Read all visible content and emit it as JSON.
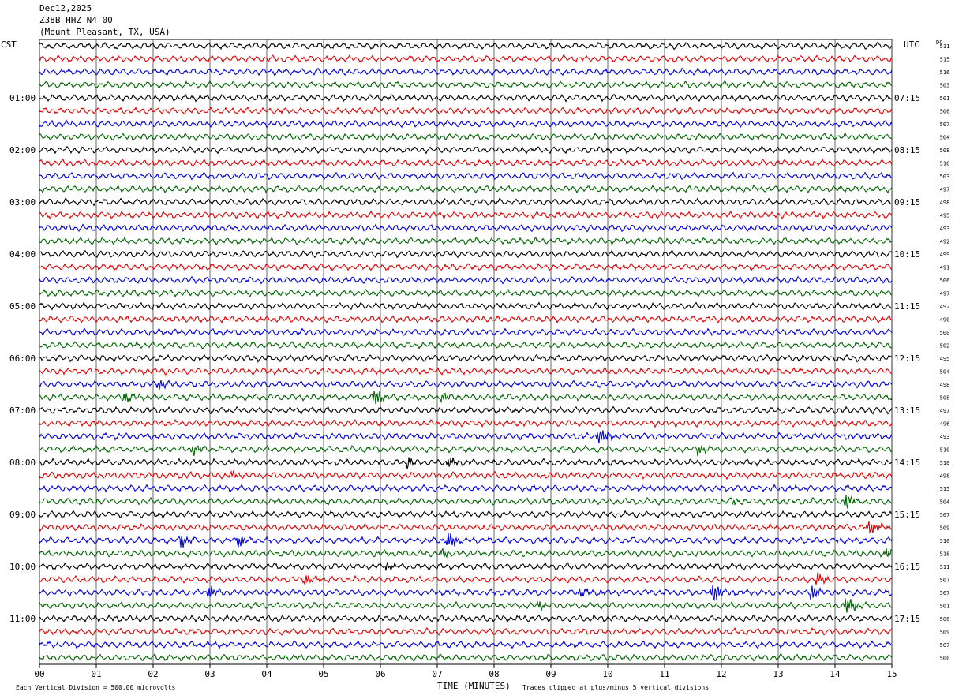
{
  "header": {
    "date": "Dec12,2025",
    "station": "Z38B HHZ N4 00",
    "location": "(Mount Pleasant, TX, USA)"
  },
  "left_zone": "CST",
  "right_zone": "UTC",
  "dc_label": "DC",
  "footer": {
    "scale_note": "Each Vertical Division =  500.00 microvolts",
    "xlabel": "TIME (MINUTES)",
    "clip_note": "Traces clipped at plus/minus 5 vertical divisions"
  },
  "chart_data": {
    "type": "line",
    "xlabel": "TIME (MINUTES)",
    "xlim": [
      0,
      15
    ],
    "x_ticks": [
      "00",
      "01",
      "02",
      "03",
      "04",
      "05",
      "06",
      "07",
      "08",
      "09",
      "10",
      "11",
      "12",
      "13",
      "14",
      "15"
    ],
    "left_hour_labels": [
      "01:00",
      "02:00",
      "03:00",
      "04:00",
      "05:00",
      "06:00",
      "07:00",
      "08:00",
      "09:00",
      "10:00",
      "11:00"
    ],
    "right_hour_labels": [
      "07:15",
      "08:15",
      "09:15",
      "10:15",
      "11:15",
      "12:15",
      "13:15",
      "14:15",
      "15:15",
      "16:15",
      "17:15"
    ],
    "trace_colors": [
      "#000000",
      "#e00000",
      "#0000e0",
      "#006400"
    ],
    "grid": true,
    "dc_offsets": [
      511,
      515,
      516,
      503,
      501,
      506,
      507,
      504,
      508,
      510,
      503,
      497,
      498,
      495,
      493,
      492,
      499,
      491,
      506,
      497,
      492,
      490,
      500,
      502,
      495,
      504,
      498,
      508,
      497,
      496,
      493,
      510,
      510,
      498,
      515,
      504,
      507,
      509,
      510,
      518,
      511,
      507,
      507,
      501,
      506,
      509,
      507,
      500
    ],
    "events": [
      {
        "trace": 26,
        "minute": 2.1,
        "amp": 1.2
      },
      {
        "trace": 27,
        "minute": 1.5,
        "amp": 1.4
      },
      {
        "trace": 27,
        "minute": 5.9,
        "amp": 2.8
      },
      {
        "trace": 27,
        "minute": 7.1,
        "amp": 1.0
      },
      {
        "trace": 30,
        "minute": 9.85,
        "amp": 2.6
      },
      {
        "trace": 31,
        "minute": 2.7,
        "amp": 1.4
      },
      {
        "trace": 31,
        "minute": 11.6,
        "amp": 1.4
      },
      {
        "trace": 32,
        "minute": 6.5,
        "amp": 1.6
      },
      {
        "trace": 32,
        "minute": 7.2,
        "amp": 1.2
      },
      {
        "trace": 33,
        "minute": 3.4,
        "amp": 1.0
      },
      {
        "trace": 35,
        "minute": 12.2,
        "amp": 1.2
      },
      {
        "trace": 35,
        "minute": 14.2,
        "amp": 3.0
      },
      {
        "trace": 37,
        "minute": 14.6,
        "amp": 2.0
      },
      {
        "trace": 38,
        "minute": 2.5,
        "amp": 2.0
      },
      {
        "trace": 38,
        "minute": 3.5,
        "amp": 1.8
      },
      {
        "trace": 38,
        "minute": 7.2,
        "amp": 2.4
      },
      {
        "trace": 39,
        "minute": 7.1,
        "amp": 1.2
      },
      {
        "trace": 39,
        "minute": 14.9,
        "amp": 1.4
      },
      {
        "trace": 40,
        "minute": 6.1,
        "amp": 1.4
      },
      {
        "trace": 41,
        "minute": 4.7,
        "amp": 1.4
      },
      {
        "trace": 41,
        "minute": 13.7,
        "amp": 1.8
      },
      {
        "trace": 42,
        "minute": 3.0,
        "amp": 1.6
      },
      {
        "trace": 42,
        "minute": 9.5,
        "amp": 1.4
      },
      {
        "trace": 42,
        "minute": 11.85,
        "amp": 3.6
      },
      {
        "trace": 42,
        "minute": 13.6,
        "amp": 2.0
      },
      {
        "trace": 43,
        "minute": 8.8,
        "amp": 1.4
      },
      {
        "trace": 43,
        "minute": 14.2,
        "amp": 3.0
      }
    ]
  }
}
